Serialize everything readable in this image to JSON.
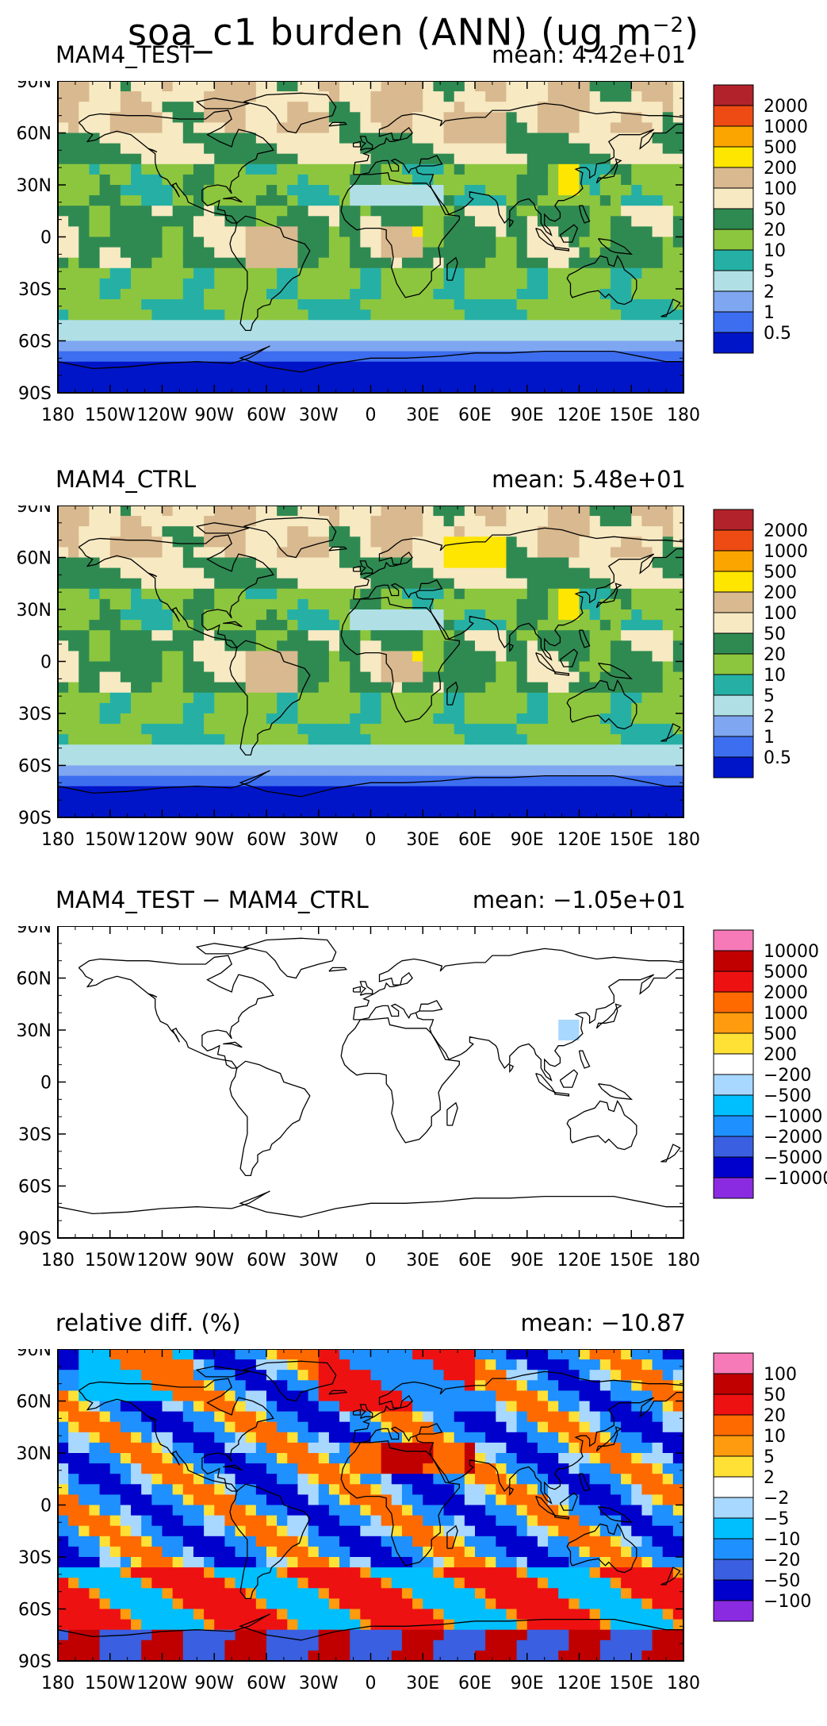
{
  "title": {
    "text": "soa_c1 burden (ANN) (ug m",
    "exponent": "−2",
    "close": ")"
  },
  "lat_labels": [
    "90N",
    "60N",
    "30N",
    "0",
    "30S",
    "60S",
    "90S"
  ],
  "lon_labels": [
    "180",
    "150W",
    "120W",
    "90W",
    "60W",
    "30W",
    "0",
    "30E",
    "60E",
    "90E",
    "120E",
    "150E",
    "180"
  ],
  "panels": [
    {
      "left_label": "MAM4_TEST",
      "right_label": "mean: 4.42e+01",
      "field": "test",
      "colorbar": {
        "labels": [
          "2000",
          "1000",
          "500",
          "200",
          "100",
          "50",
          "20",
          "10",
          "5",
          "2",
          "1",
          "0.5"
        ],
        "colors": [
          "#b2222a",
          "#ee4b14",
          "#fba500",
          "#ffe600",
          "#d9b98f",
          "#f7e9c2",
          "#2f8a52",
          "#8cc63e",
          "#26b0a5",
          "#b0e0e6",
          "#7fa6f0",
          "#3d6ef0",
          "#0015c8"
        ]
      }
    },
    {
      "left_label": "MAM4_CTRL",
      "right_label": "mean: 5.48e+01",
      "field": "ctrl",
      "colorbar": {
        "labels": [
          "2000",
          "1000",
          "500",
          "200",
          "100",
          "50",
          "20",
          "10",
          "5",
          "2",
          "1",
          "0.5"
        ],
        "colors": [
          "#b2222a",
          "#ee4b14",
          "#fba500",
          "#ffe600",
          "#d9b98f",
          "#f7e9c2",
          "#2f8a52",
          "#8cc63e",
          "#26b0a5",
          "#b0e0e6",
          "#7fa6f0",
          "#3d6ef0",
          "#0015c8"
        ]
      }
    },
    {
      "left_label": "MAM4_TEST − MAM4_CTRL",
      "right_label": "mean: −1.05e+01",
      "field": "diff",
      "colorbar": {
        "labels": [
          "10000",
          "5000",
          "2000",
          "1000",
          "500",
          "200",
          "−200",
          "−500",
          "−1000",
          "−2000",
          "−5000",
          "−10000"
        ],
        "colors": [
          "#f67ab8",
          "#c00000",
          "#ee1111",
          "#ff6a00",
          "#ff9b0e",
          "#ffe135",
          "#ffffff",
          "#a8d8ff",
          "#00bfff",
          "#1e90ff",
          "#3a5fe0",
          "#0000cc",
          "#8a2be2"
        ]
      }
    },
    {
      "left_label": "relative diff. (%)",
      "right_label": "mean: −10.87",
      "field": "rel",
      "colorbar": {
        "labels": [
          "100",
          "50",
          "20",
          "10",
          "5",
          "2",
          "−2",
          "−5",
          "−10",
          "−20",
          "−50",
          "−100"
        ],
        "colors": [
          "#f67ab8",
          "#c00000",
          "#ee1111",
          "#ff6a00",
          "#ff9b0e",
          "#ffe135",
          "#ffffff",
          "#a8d8ff",
          "#00bfff",
          "#1e90ff",
          "#3a5fe0",
          "#0000cc",
          "#8a2be2"
        ]
      }
    }
  ]
}
